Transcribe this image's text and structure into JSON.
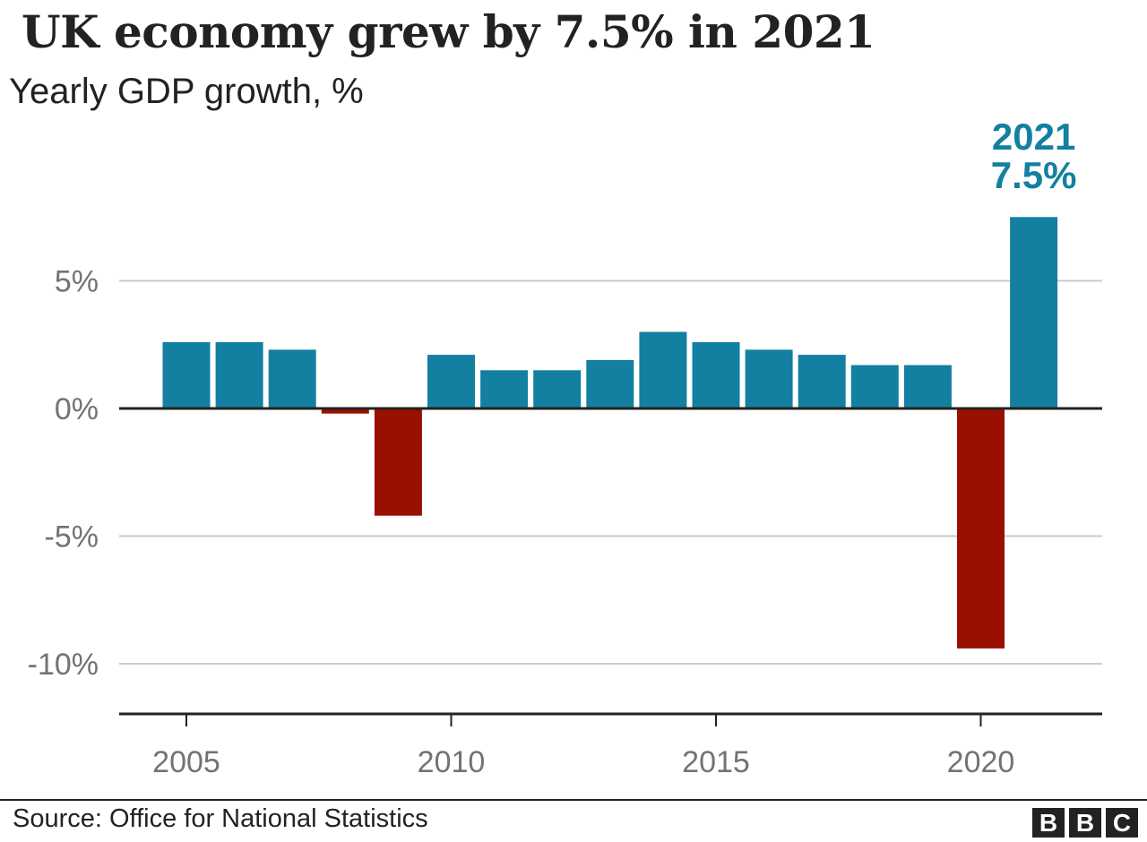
{
  "header": {
    "title": "UK economy grew by 7.5% in 2021",
    "subtitle": "Yearly GDP growth, %"
  },
  "footer": {
    "source": "Source: Office for National Statistics",
    "logo_letters": [
      "B",
      "B",
      "C"
    ]
  },
  "colors": {
    "positive": "#1380a1",
    "negative": "#990f00",
    "gridline": "#cbcbcb",
    "axis": "#222222",
    "tick_label": "#737373"
  },
  "chart_data": {
    "type": "bar",
    "title": "UK economy grew by 7.5% in 2021",
    "subtitle": "Yearly GDP growth, %",
    "xlabel": "",
    "ylabel": "",
    "categories": [
      2005,
      2006,
      2007,
      2008,
      2009,
      2010,
      2011,
      2012,
      2013,
      2014,
      2015,
      2016,
      2017,
      2018,
      2019,
      2020,
      2021
    ],
    "values": [
      2.6,
      2.6,
      2.3,
      -0.2,
      -4.2,
      2.1,
      1.5,
      1.5,
      1.9,
      3.0,
      2.6,
      2.3,
      2.1,
      1.7,
      1.7,
      -9.4,
      7.5
    ],
    "ylim": [
      -12,
      7.5
    ],
    "yticks": [
      5,
      0,
      -5,
      -10
    ],
    "ytick_labels": [
      "5%",
      "0%",
      "-5%",
      "-10%"
    ],
    "xticks": [
      2005,
      2010,
      2015,
      2020
    ],
    "xtick_labels": [
      "2005",
      "2010",
      "2015",
      "2020"
    ],
    "grid": true,
    "annotation": {
      "year": 2021,
      "line1": "2021",
      "line2": "7.5%"
    }
  }
}
